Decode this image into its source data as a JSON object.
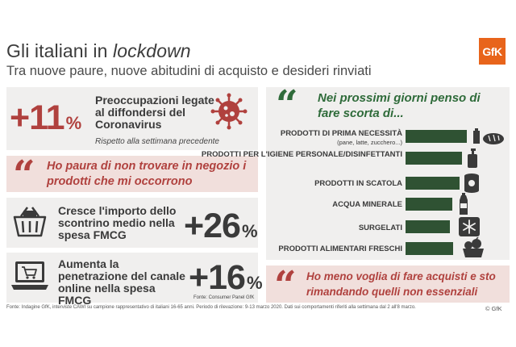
{
  "header": {
    "title_plain": "Gli italiani in ",
    "title_italic": "lockdown",
    "subtitle": "Tra nuove paure, nuove abitudini di acquisto e desideri rinviati",
    "logo_text": "GfK"
  },
  "virus_panel": {
    "value": "+11",
    "unit": "%",
    "text": "Preoccupazioni legate al diffondersi del Coronavirus",
    "note": "Rispetto alla settimana precedente",
    "icon": "virus-icon"
  },
  "fear_quote": {
    "text": "Ho paura di non trovare in negozio i prodotti che mi occorrono",
    "icon": "quote-icon"
  },
  "receipt_panel": {
    "text": "Cresce l'importo dello scontrino medio nella spesa FMCG",
    "value": "+26",
    "unit": "%",
    "icon": "basket-icon"
  },
  "online_panel": {
    "text": "Aumenta la penetrazione del canale online nella spesa FMCG",
    "value": "+16",
    "unit": "%",
    "source": "Fonte: Consumer Panel GfK",
    "icon": "laptop-cart-icon"
  },
  "stockup_quote": {
    "text": "Nei prossimi giorni penso di fare scorta di...",
    "icon": "quote-icon"
  },
  "postpone_quote": {
    "text": "Ho meno voglia di fare acquisti e sto rimandando quelli non essenziali",
    "icon": "quote-icon"
  },
  "chart_data": {
    "type": "bar",
    "orientation": "horizontal",
    "categories": [
      "PRODOTTI DI PRIMA NECESSITÀ",
      "PRODOTTI PER L'IGIENE PERSONALE/DISINFETTANTI",
      "PRODOTTI IN SCATOLA",
      "ACQUA MINERALE",
      "SURGELATI",
      "PRODOTTI ALIMENTARI FRESCHI"
    ],
    "category_sublabels": [
      "(pane, latte, zucchero...)",
      "",
      "",
      "",
      "",
      ""
    ],
    "category_icons": [
      "bread-milk-icon",
      "soap-bottle-icon",
      "can-icon",
      "water-bottle-icon",
      "snowflake-icon",
      "vegetables-icon"
    ],
    "values": [
      100,
      92,
      88,
      76,
      72,
      78
    ],
    "value_unit": "relative length (no values printed)",
    "xlim": [
      0,
      100
    ],
    "grid": false,
    "legend": "none",
    "bar_color": "#2f5233"
  },
  "footer": {
    "source": "Fonte: Indagine GfK, interviste CAWI su campione rappresentativo di italiani 16-65 anni. Periodo di rilevazione: 9-13 marzo 2020. Dati sui comportamenti riferiti alla settimana dal 2 all'8 marzo.",
    "copyright": "© GfK"
  },
  "colors": {
    "accent_red": "#b0413e",
    "accent_green": "#2f6b3a",
    "bar_green": "#2f5233",
    "panel_grey": "#f0efee",
    "panel_pink": "#f1dfdc",
    "logo_orange": "#e8641b"
  }
}
